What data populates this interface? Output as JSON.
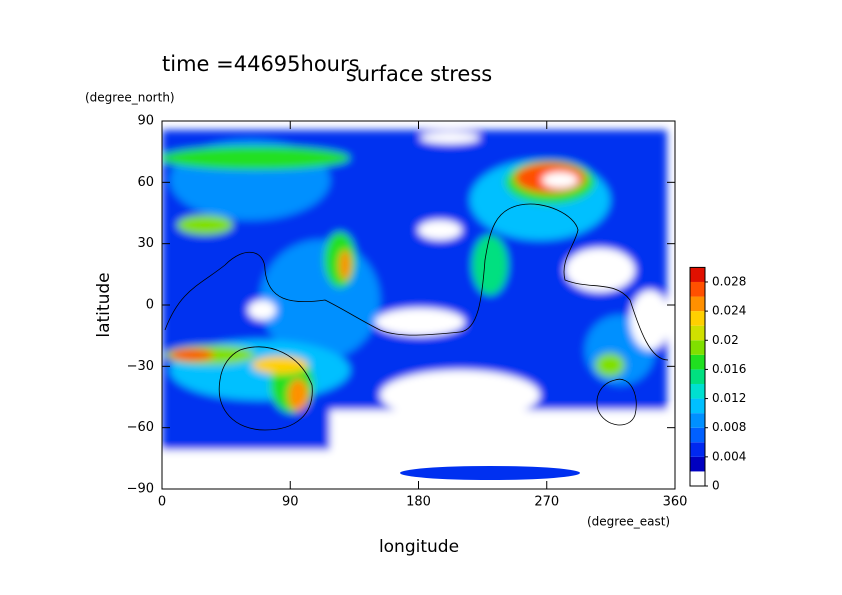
{
  "chart_data": {
    "type": "contour",
    "title": "surface stress",
    "subtitle": "time =44695hours",
    "x_label": "longitude",
    "x_unit": "(degree_east)",
    "y_label": "latitude",
    "y_unit": "(degree_north)",
    "xlim": [
      0,
      360
    ],
    "xticks": [
      0,
      90,
      180,
      270,
      360
    ],
    "ylim": [
      -90,
      90
    ],
    "yticks": [
      {
        "value": -90,
        "label": "−90"
      },
      {
        "value": -60,
        "label": "−60"
      },
      {
        "value": -30,
        "label": "−30"
      },
      0,
      30,
      60,
      90
    ],
    "clim": [
      0,
      0.03
    ],
    "cticks": [
      0,
      0.004,
      0.008,
      0.012,
      0.016,
      0.02,
      0.024,
      0.028
    ],
    "colors": [
      "#ffffff",
      "#0000c0",
      "#0028f0",
      "#0060ff",
      "#0090ff",
      "#00c0ff",
      "#00e0d0",
      "#00e080",
      "#20e020",
      "#80e000",
      "#d0e000",
      "#ffd000",
      "#ff9000",
      "#ff5000",
      "#e01000"
    ]
  }
}
